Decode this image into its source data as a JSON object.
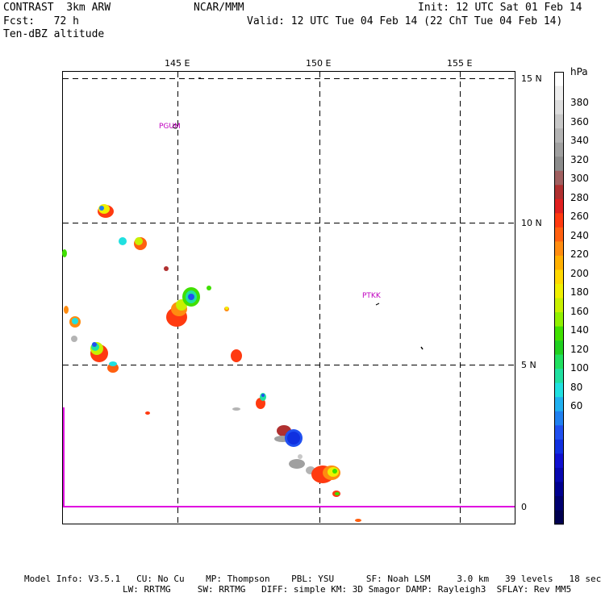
{
  "header": {
    "model": "CONTRAST  3km ARW",
    "fcst": "Fcst:   72 h",
    "field": "Ten-dBZ altitude",
    "center": "NCAR/MMM",
    "init": "Init: 12 UTC Sat 01 Feb 14",
    "valid": "Valid: 12 UTC Tue 04 Feb 14 (22 ChT Tue 04 Feb 14)"
  },
  "axes": {
    "lon_labels": [
      "145 E",
      "150 E",
      "155 E"
    ],
    "lat_labels": [
      "15 N",
      "10 N",
      "5 N",
      "0"
    ]
  },
  "stations": {
    "pgum": "PGUM",
    "ptkk": "PTKK"
  },
  "colorbar": {
    "unit": "hPa",
    "labels": [
      "380",
      "360",
      "340",
      "320",
      "300",
      "280",
      "260",
      "240",
      "220",
      "200",
      "180",
      "160",
      "140",
      "120",
      "100",
      "80",
      "60"
    ],
    "colors": [
      "#ffffff",
      "#eeeeee",
      "#dddddd",
      "#c8c8c8",
      "#b4b4b4",
      "#a0a0a0",
      "#8c8c8c",
      "#a06060",
      "#b03030",
      "#e02020",
      "#ff3a10",
      "#ff6010",
      "#ff8c10",
      "#ffb000",
      "#ffd800",
      "#f0f000",
      "#c8f000",
      "#90f000",
      "#40e000",
      "#20d020",
      "#20e060",
      "#20e0a0",
      "#20e0e0",
      "#20b0f0",
      "#2080f0",
      "#2050f0",
      "#1030e0",
      "#1010d0",
      "#0808b0",
      "#000090",
      "#000070",
      "#000050"
    ]
  },
  "footer": {
    "line1": "Model Info: V3.5.1   CU: No Cu    MP: Thompson    PBL: YSU      SF: Noah LSM     3.0 km   39 levels   18 sec",
    "line2": "LW: RRTMG     SW: RRTMG   DIFF: simple KM: 3D Smagor DAMP: Rayleigh3  SFLAY: Rev MM5"
  }
}
